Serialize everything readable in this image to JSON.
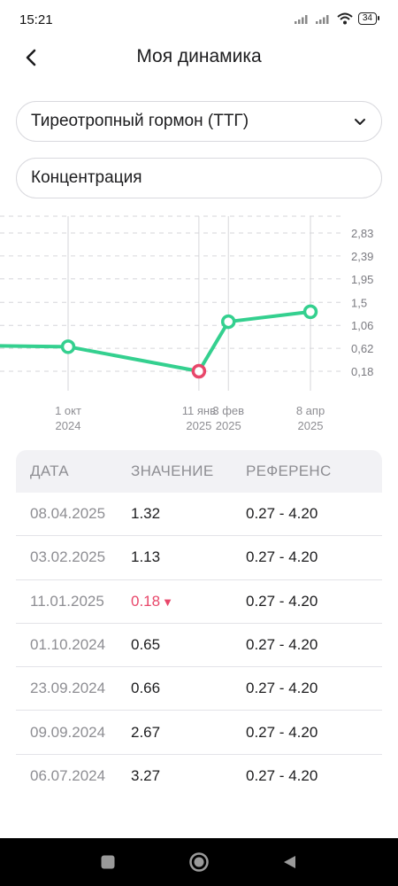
{
  "status_bar": {
    "time": "15:21",
    "battery": "34",
    "icons": [
      "signal-icon",
      "signal-icon",
      "wifi-icon",
      "battery-icon"
    ]
  },
  "header": {
    "title": "Моя динамика",
    "back_icon": "chevron-left-icon"
  },
  "filters": {
    "analyte": "Тиреотропный гормон (ТТГ)",
    "analyte_icon": "chevron-down-icon",
    "metric": "Концентрация"
  },
  "colors": {
    "line": "#34d08f",
    "low_point": "#e8476a",
    "grid": "#d6d6da"
  },
  "chart_data": {
    "type": "line",
    "y_ticks": [
      "2,83",
      "2,39",
      "1,95",
      "1,5",
      "1,06",
      "0,62",
      "0,18"
    ],
    "x_ticks": [
      {
        "line1": "1 окт",
        "line2": "2024"
      },
      {
        "line1": "11 янв",
        "line2": "2025"
      },
      {
        "line1": "3 фев",
        "line2": "2025"
      },
      {
        "line1": "8 апр",
        "line2": "2025"
      }
    ],
    "points": [
      {
        "x": "2024-10-01",
        "y": 0.65,
        "flag": "normal"
      },
      {
        "x": "2025-01-11",
        "y": 0.18,
        "flag": "low"
      },
      {
        "x": "2025-02-03",
        "y": 1.13,
        "flag": "normal"
      },
      {
        "x": "2025-04-08",
        "y": 1.32,
        "flag": "normal"
      }
    ],
    "grid": true
  },
  "table": {
    "headers": [
      "ДАТА",
      "ЗНАЧЕНИЕ",
      "РЕФЕРЕНС"
    ],
    "rows": [
      {
        "date": "08.04.2025",
        "value": "1.32",
        "ref": "0.27 - 4.20",
        "low": false
      },
      {
        "date": "03.02.2025",
        "value": "1.13",
        "ref": "0.27 - 4.20",
        "low": false
      },
      {
        "date": "11.01.2025",
        "value": "0.18",
        "ref": "0.27 - 4.20",
        "low": true
      },
      {
        "date": "01.10.2024",
        "value": "0.65",
        "ref": "0.27 - 4.20",
        "low": false
      },
      {
        "date": "23.09.2024",
        "value": "0.66",
        "ref": "0.27 - 4.20",
        "low": false
      },
      {
        "date": "09.09.2024",
        "value": "2.67",
        "ref": "0.27 - 4.20",
        "low": false
      },
      {
        "date": "06.07.2024",
        "value": "3.27",
        "ref": "0.27 - 4.20",
        "low": false
      }
    ],
    "low_marker": "▼"
  },
  "nav": {
    "buttons": [
      "recents-icon",
      "home-icon",
      "back-triangle-icon"
    ]
  }
}
